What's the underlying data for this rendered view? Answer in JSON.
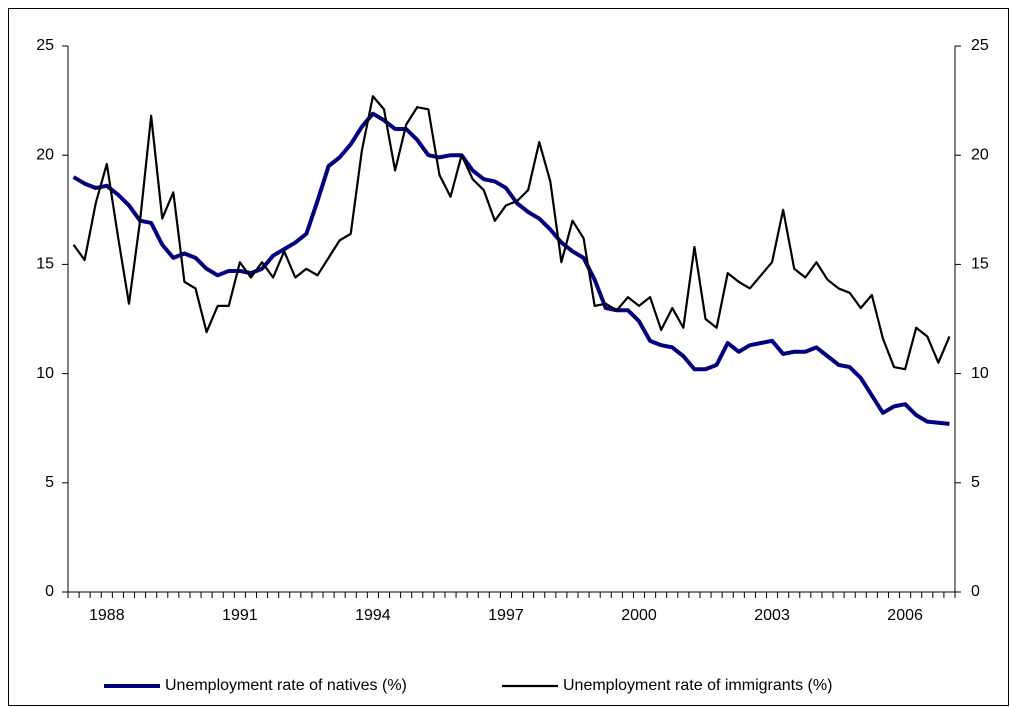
{
  "chart_data": {
    "type": "line",
    "categories": [
      null,
      null,
      null,
      "1988",
      null,
      null,
      null,
      null,
      null,
      null,
      null,
      null,
      null,
      null,
      null,
      "1991",
      null,
      null,
      null,
      null,
      null,
      null,
      null,
      null,
      null,
      null,
      null,
      "1994",
      null,
      null,
      null,
      null,
      null,
      null,
      null,
      null,
      null,
      null,
      null,
      "1997",
      null,
      null,
      null,
      null,
      null,
      null,
      null,
      null,
      null,
      null,
      null,
      "2000",
      null,
      null,
      null,
      null,
      null,
      null,
      null,
      null,
      null,
      null,
      null,
      "2003",
      null,
      null,
      null,
      null,
      null,
      null,
      null,
      null,
      null,
      null,
      null,
      "2006",
      null,
      null,
      null,
      null
    ],
    "series": [
      {
        "name": "Unemployment rate of natives (%)",
        "color": "#000080",
        "values": [
          19.0,
          18.7,
          18.5,
          18.6,
          18.2,
          17.7,
          17.0,
          16.9,
          15.9,
          15.3,
          15.5,
          15.3,
          14.8,
          14.5,
          14.7,
          14.7,
          14.6,
          14.8,
          15.4,
          15.7,
          16.0,
          16.4,
          17.9,
          19.5,
          19.9,
          20.5,
          21.3,
          21.9,
          21.6,
          21.2,
          21.2,
          20.7,
          20.0,
          19.9,
          20.0,
          20.0,
          19.3,
          18.9,
          18.8,
          18.5,
          17.8,
          17.4,
          17.1,
          16.6,
          16.0,
          15.6,
          15.3,
          14.3,
          13.0,
          12.9,
          12.9,
          12.4,
          11.5,
          11.3,
          11.2,
          10.8,
          10.2,
          10.2,
          10.4,
          11.4,
          11.0,
          11.3,
          11.4,
          11.5,
          10.9,
          11.0,
          11.0,
          11.2,
          10.8,
          10.4,
          10.3,
          9.8,
          9.0,
          8.2,
          8.5,
          8.6,
          8.1,
          7.8,
          7.75,
          7.7
        ]
      },
      {
        "name": "Unemployment rate of immigrants (%)",
        "color": "#000000",
        "axis": "y2",
        "values": [
          15.9,
          15.2,
          17.8,
          19.6,
          16.3,
          13.2,
          17.0,
          21.8,
          17.1,
          18.3,
          14.2,
          13.9,
          11.9,
          13.1,
          13.1,
          15.1,
          14.4,
          15.1,
          14.4,
          15.6,
          14.4,
          14.8,
          14.5,
          15.3,
          16.1,
          16.4,
          20.2,
          22.7,
          22.1,
          19.3,
          21.4,
          22.2,
          22.1,
          19.1,
          18.1,
          20.0,
          18.9,
          18.4,
          17.0,
          17.7,
          17.9,
          18.4,
          20.6,
          18.8,
          15.1,
          17.0,
          16.2,
          13.1,
          13.2,
          12.9,
          13.5,
          13.1,
          13.5,
          12.0,
          13.0,
          12.1,
          15.8,
          12.5,
          12.1,
          14.6,
          14.2,
          13.9,
          14.5,
          15.1,
          17.5,
          14.8,
          14.4,
          15.1,
          14.3,
          13.9,
          13.7,
          13.0,
          13.6,
          11.6,
          10.3,
          10.2,
          12.1,
          11.7,
          10.5,
          11.7
        ]
      }
    ],
    "ylim": [
      0,
      25
    ],
    "yticks": [
      0,
      5,
      10,
      15,
      20,
      25
    ],
    "y2lim": [
      0,
      25
    ],
    "y2ticks": [
      0,
      5,
      10,
      15,
      20,
      25
    ],
    "grid": false
  }
}
